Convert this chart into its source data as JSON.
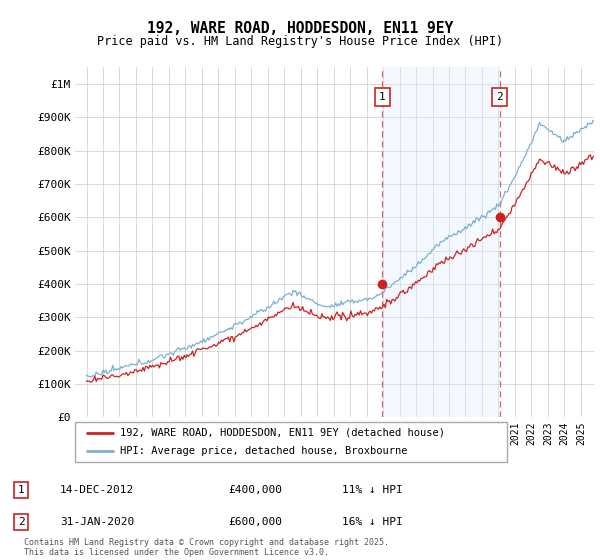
{
  "title": "192, WARE ROAD, HODDESDON, EN11 9EY",
  "subtitle": "Price paid vs. HM Land Registry's House Price Index (HPI)",
  "ylim": [
    0,
    1050000
  ],
  "yticks": [
    0,
    100000,
    200000,
    300000,
    400000,
    500000,
    600000,
    700000,
    800000,
    900000,
    1000000
  ],
  "ytick_labels": [
    "£0",
    "£100K",
    "£200K",
    "£300K",
    "£400K",
    "£500K",
    "£600K",
    "£700K",
    "£800K",
    "£900K",
    "£1M"
  ],
  "hpi_color": "#7bafd4",
  "price_color": "#cc2222",
  "shaded_region_color": "#ddeeff",
  "grid_color": "#cccccc",
  "background_color": "#f0f4f8",
  "legend_label_price": "192, WARE ROAD, HODDESDON, EN11 9EY (detached house)",
  "legend_label_hpi": "HPI: Average price, detached house, Broxbourne",
  "annotation_1_date": "14-DEC-2012",
  "annotation_1_price": "£400,000",
  "annotation_1_hpi": "11% ↓ HPI",
  "annotation_2_date": "31-JAN-2020",
  "annotation_2_price": "£600,000",
  "annotation_2_hpi": "16% ↓ HPI",
  "footer": "Contains HM Land Registry data © Crown copyright and database right 2025.\nThis data is licensed under the Open Government Licence v3.0.",
  "sale1_x": 2012.96,
  "sale1_y": 400000,
  "sale2_x": 2020.08,
  "sale2_y": 600000,
  "shade_start": 2012.96,
  "shade_end": 2020.08,
  "xlim_left": 1994.3,
  "xlim_right": 2025.8
}
